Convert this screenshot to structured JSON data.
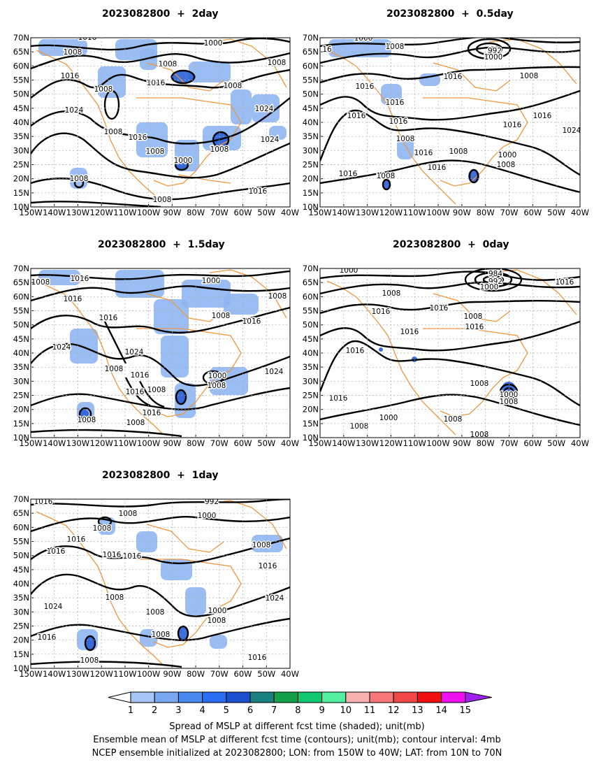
{
  "panels": [
    {
      "id": "p2",
      "title": "2023082800  +  2day",
      "labels": [
        [
          "1016",
          125,
          54
        ],
        [
          "1008",
          104,
          75
        ],
        [
          "1000",
          305,
          62
        ],
        [
          "1008",
          240,
          92
        ],
        [
          "1008",
          396,
          90
        ],
        [
          "1016",
          100,
          109
        ],
        [
          "1016",
          223,
          119
        ],
        [
          "1008",
          148,
          128
        ],
        [
          "1008",
          333,
          123
        ],
        [
          "1024",
          106,
          158
        ],
        [
          "1024",
          378,
          156
        ],
        [
          "1008",
          162,
          189
        ],
        [
          "1016",
          197,
          197
        ],
        [
          "1024",
          386,
          200
        ],
        [
          "1008",
          222,
          217
        ],
        [
          "1008",
          314,
          214
        ],
        [
          "1000",
          262,
          230
        ],
        [
          "1008",
          113,
          256
        ],
        [
          "1016",
          369,
          274
        ],
        [
          "1008",
          232,
          286
        ]
      ],
      "spread": [
        [
          55,
          56,
          70,
          24
        ],
        [
          165,
          56,
          60,
          30
        ],
        [
          200,
          70,
          25,
          30
        ],
        [
          140,
          95,
          40,
          45
        ],
        [
          330,
          128,
          30,
          50
        ],
        [
          270,
          88,
          60,
          30
        ],
        [
          360,
          135,
          40,
          40
        ],
        [
          195,
          175,
          45,
          50
        ],
        [
          250,
          200,
          35,
          45
        ],
        [
          290,
          180,
          55,
          35
        ],
        [
          100,
          240,
          25,
          30
        ],
        [
          385,
          180,
          25,
          20
        ]
      ],
      "dark": [
        [
          262,
          110,
          18,
          8
        ],
        [
          316,
          200,
          12,
          10
        ],
        [
          260,
          237,
          8,
          6
        ]
      ]
    },
    {
      "id": "p05",
      "title": "2023082800  +  0.5day",
      "labels": [
        [
          "1000",
          520,
          55
        ],
        [
          "16",
          468,
          71
        ],
        [
          "1008",
          565,
          67
        ],
        [
          "992",
          708,
          73
        ],
        [
          "1000",
          706,
          82
        ],
        [
          "1016",
          648,
          110
        ],
        [
          "1008",
          757,
          109
        ],
        [
          "1016",
          522,
          124
        ],
        [
          "1016",
          565,
          147
        ],
        [
          "1016",
          510,
          166
        ],
        [
          "1016",
          570,
          174
        ],
        [
          "1016",
          776,
          166
        ],
        [
          "1016",
          733,
          179
        ],
        [
          "1024",
          818,
          187
        ],
        [
          "1008",
          580,
          199
        ],
        [
          "1016",
          606,
          219
        ],
        [
          "1016",
          625,
          240
        ],
        [
          "1008",
          656,
          217
        ],
        [
          "1000",
          726,
          222
        ],
        [
          "1008",
          724,
          236
        ],
        [
          "1016",
          498,
          249
        ],
        [
          "1008",
          552,
          252
        ]
      ],
      "spread": [
        [
          470,
          56,
          90,
          26
        ],
        [
          545,
          120,
          30,
          30
        ],
        [
          568,
          198,
          24,
          30
        ],
        [
          600,
          105,
          30,
          18
        ]
      ],
      "dark": [
        [
          553,
          264,
          6,
          8
        ],
        [
          678,
          252,
          8,
          10
        ]
      ]
    },
    {
      "id": "p15",
      "title": "2023082800  +  1.5day",
      "labels": [
        [
          "1016",
          114,
          399
        ],
        [
          "1008",
          58,
          404
        ],
        [
          "1000",
          302,
          402
        ],
        [
          "1016",
          104,
          428
        ],
        [
          "1008",
          397,
          424
        ],
        [
          "1016",
          155,
          455
        ],
        [
          "1008",
          316,
          452
        ],
        [
          "1016",
          360,
          460
        ],
        [
          "1024",
          88,
          497
        ],
        [
          "1024",
          192,
          504
        ],
        [
          "1008",
          163,
          528
        ],
        [
          "1016",
          200,
          537
        ],
        [
          "1000",
          311,
          538
        ],
        [
          "1008",
          310,
          552
        ],
        [
          "1024",
          392,
          532
        ],
        [
          "1008",
          224,
          558
        ],
        [
          "1016",
          193,
          561
        ],
        [
          "1016",
          217,
          591
        ],
        [
          "1008",
          194,
          605
        ],
        [
          "1008",
          124,
          601
        ]
      ],
      "spread": [
        [
          55,
          386,
          60,
          22
        ],
        [
          165,
          386,
          70,
          40
        ],
        [
          220,
          428,
          50,
          50
        ],
        [
          260,
          400,
          70,
          40
        ],
        [
          320,
          420,
          50,
          30
        ],
        [
          100,
          470,
          40,
          50
        ],
        [
          230,
          480,
          40,
          60
        ],
        [
          300,
          525,
          55,
          40
        ],
        [
          250,
          548,
          30,
          50
        ],
        [
          110,
          575,
          25,
          30
        ]
      ],
      "dark": [
        [
          259,
          568,
          8,
          10
        ],
        [
          121,
          592,
          6,
          6
        ]
      ]
    },
    {
      "id": "p0",
      "title": "2023082800  +  0day",
      "labels": [
        [
          "1000",
          499,
          387
        ],
        [
          "984",
          709,
          392
        ],
        [
          "992",
          709,
          403
        ],
        [
          "1000",
          700,
          411
        ],
        [
          "1016",
          808,
          404
        ],
        [
          "1008",
          560,
          420
        ],
        [
          "1016",
          545,
          446
        ],
        [
          "1016",
          628,
          441
        ],
        [
          "1008",
          677,
          453
        ],
        [
          "1016",
          679,
          468
        ],
        [
          "1016",
          508,
          502
        ],
        [
          "1016",
          586,
          475
        ],
        [
          "1008",
          686,
          549
        ],
        [
          "1000",
          728,
          565
        ],
        [
          "1008",
          728,
          575
        ],
        [
          "1016",
          484,
          570
        ],
        [
          "1000",
          556,
          598
        ],
        [
          "1008",
          514,
          610
        ],
        [
          "1008",
          648,
          600
        ],
        [
          "1008",
          686,
          622
        ]
      ],
      "spread": [],
      "dark": [
        [
          728,
          556,
          10,
          10
        ],
        [
          593,
          514,
          4,
          4
        ],
        [
          545,
          500,
          3,
          3
        ]
      ]
    },
    {
      "id": "p1",
      "title": "2023082800  +  1day",
      "labels": [
        [
          "1016",
          62,
          718
        ],
        [
          "992",
          303,
          718
        ],
        [
          "1008",
          183,
          735
        ],
        [
          "1000",
          296,
          738
        ],
        [
          "1008",
          146,
          756
        ],
        [
          "1016",
          109,
          772
        ],
        [
          "1008",
          374,
          780
        ],
        [
          "1016",
          80,
          789
        ],
        [
          "1016",
          160,
          794
        ],
        [
          "1016",
          189,
          796
        ],
        [
          "1016",
          383,
          810
        ],
        [
          "1024",
          393,
          856
        ],
        [
          "1008",
          164,
          855
        ],
        [
          "1024",
          76,
          868
        ],
        [
          "1008",
          222,
          876
        ],
        [
          "1000",
          311,
          874
        ],
        [
          "1008",
          310,
          888
        ],
        [
          "1016",
          67,
          912
        ],
        [
          "1008",
          230,
          908
        ],
        [
          "1008",
          128,
          945
        ],
        [
          "1016",
          368,
          941
        ]
      ],
      "spread": [
        [
          140,
          740,
          25,
          25
        ],
        [
          360,
          765,
          45,
          25
        ],
        [
          195,
          760,
          30,
          30
        ],
        [
          230,
          800,
          45,
          30
        ],
        [
          265,
          840,
          30,
          40
        ],
        [
          110,
          900,
          30,
          30
        ],
        [
          200,
          900,
          25,
          25
        ],
        [
          300,
          908,
          25,
          20
        ]
      ],
      "dark": [
        [
          129,
          920,
          8,
          10
        ],
        [
          262,
          906,
          8,
          10
        ]
      ]
    }
  ],
  "axes": {
    "lat_labels": [
      "70N",
      "65N",
      "60N",
      "55N",
      "50N",
      "45N",
      "40N",
      "35N",
      "30N",
      "25N",
      "20N",
      "15N",
      "10N"
    ],
    "lon_labels": [
      "150W",
      "140W",
      "130W",
      "120W",
      "110W",
      "100W",
      "90W",
      "80W",
      "70W",
      "60W",
      "50W",
      "40W"
    ]
  },
  "colorbar": {
    "labels": [
      "1",
      "2",
      "3",
      "4",
      "5",
      "6",
      "7",
      "8",
      "9",
      "10",
      "11",
      "12",
      "13",
      "14",
      "15"
    ],
    "colors": [
      "#a7c6f5",
      "#78a8f0",
      "#4a8af0",
      "#2b6ef2",
      "#1a50d0",
      "#1a8080",
      "#12a04a",
      "#10c870",
      "#50f0a0",
      "#f8b0b0",
      "#f87878",
      "#f04848",
      "#f01010",
      "#f010f0",
      "#a020f0"
    ]
  },
  "caption": {
    "line1": "Spread of MSLP at different fcst time (shaded); unit(mb)",
    "line2": "Ensemble mean of MSLP at different fcst time (contours); unit(mb); contour interval: 4mb",
    "line3": "NCEP ensemble initialized at 2023082800; LON: from 150W to 40W; LAT: from 10N to 70N"
  }
}
